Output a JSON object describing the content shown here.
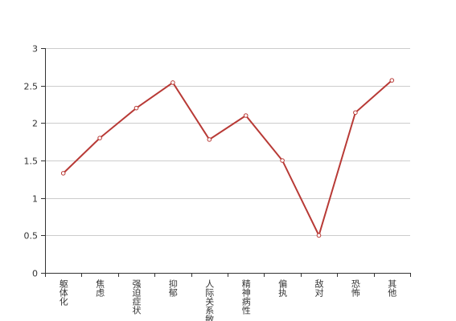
{
  "chart_data": {
    "type": "line",
    "categories": [
      "躯体化",
      "焦虑",
      "强迫症状",
      "抑郁",
      "人际关系敏感",
      "精神病性",
      "偏执",
      "敌对",
      "恐怖",
      "其他"
    ],
    "values": [
      1.33,
      1.8,
      2.2,
      2.54,
      1.78,
      2.1,
      1.5,
      0.5,
      2.14,
      2.57
    ],
    "color": "#b83a36",
    "ylim": [
      0,
      3
    ],
    "yticks": [
      0,
      0.5,
      1,
      1.5,
      2,
      2.5,
      3
    ],
    "grid": true
  }
}
